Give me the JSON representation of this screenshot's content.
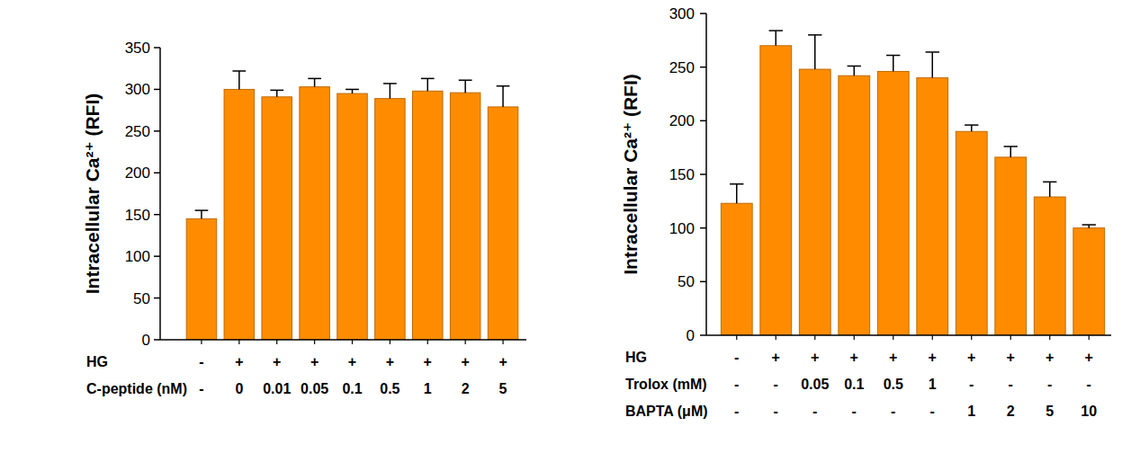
{
  "chart_data": [
    {
      "type": "bar",
      "y_label": "Intracellular Ca²⁺ (RFI)",
      "categories": [
        null,
        null,
        null,
        null,
        null,
        null,
        null,
        null,
        null
      ],
      "values": [
        145,
        300,
        291,
        303,
        295,
        289,
        298,
        296,
        279
      ],
      "errors": [
        10,
        22,
        8,
        10,
        5,
        18,
        15,
        15,
        25
      ],
      "color": "#ff8c00",
      "ylim": [
        0,
        350
      ],
      "yticks": [
        0,
        50,
        100,
        150,
        200,
        250,
        300,
        350
      ],
      "condition_rows": [
        {
          "label": "HG",
          "values": [
            "-",
            "+",
            "+",
            "+",
            "+",
            "+",
            "+",
            "+",
            "+"
          ]
        },
        {
          "label": "C-peptide (nM)",
          "values": [
            "-",
            "0",
            "0.01",
            "0.05",
            "0.1",
            "0.5",
            "1",
            "2",
            "5"
          ]
        }
      ]
    },
    {
      "type": "bar",
      "y_label": "Intracellular Ca²⁺ (RFI)",
      "categories": [
        null,
        null,
        null,
        null,
        null,
        null,
        null,
        null,
        null,
        null
      ],
      "values": [
        123,
        270,
        248,
        242,
        246,
        240,
        190,
        166,
        129,
        100
      ],
      "errors": [
        18,
        14,
        32,
        9,
        15,
        24,
        6,
        10,
        14,
        3
      ],
      "color": "#ff8c00",
      "ylim": [
        0,
        300
      ],
      "yticks": [
        0,
        50,
        100,
        150,
        200,
        250,
        300
      ],
      "condition_rows": [
        {
          "label": "HG",
          "values": [
            "-",
            "+",
            "+",
            "+",
            "+",
            "+",
            "+",
            "+",
            "+",
            "+"
          ]
        },
        {
          "label": "Trolox (mM)",
          "values": [
            "-",
            "-",
            "0.05",
            "0.1",
            "0.5",
            "1",
            "-",
            "-",
            "-",
            "-"
          ]
        },
        {
          "label": "BAPTA (μM)",
          "values": [
            "-",
            "-",
            "-",
            "-",
            "-",
            "-",
            "1",
            "2",
            "5",
            "10"
          ]
        }
      ]
    }
  ]
}
